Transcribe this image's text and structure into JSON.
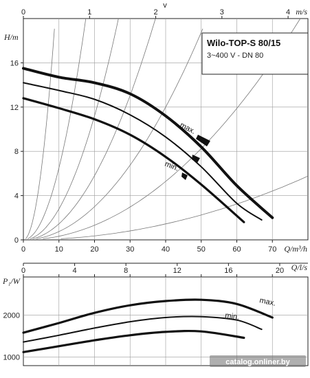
{
  "chart_data": [
    {
      "type": "line",
      "legend_box": {
        "title": "Wilo-TOP-S 80/15",
        "subtitle": "3~400 V - DN 80"
      },
      "top_axis": {
        "label": "v",
        "unit": "m/s",
        "ticks": [
          "0",
          "1",
          "2",
          "3",
          "4"
        ],
        "range": [
          0,
          4.3
        ]
      },
      "x_axis": {
        "unit": "Q/m³/h",
        "ticks": [
          "0",
          "10",
          "20",
          "30",
          "40",
          "50",
          "60",
          "70"
        ],
        "range": [
          0,
          80
        ]
      },
      "y_axis": {
        "unit": "H/m",
        "ticks": [
          "0",
          "4",
          "8",
          "12",
          "16"
        ],
        "range": [
          0,
          20
        ]
      },
      "grid": true,
      "series": [
        {
          "name": "max.",
          "x": [
            0,
            10,
            20,
            30,
            40,
            50,
            60,
            70
          ],
          "y": [
            15.5,
            14.7,
            14.2,
            13.2,
            11.2,
            8.4,
            4.9,
            2.0
          ]
        },
        {
          "name": "",
          "x": [
            0,
            10,
            20,
            30,
            40,
            50,
            60,
            67
          ],
          "y": [
            14.2,
            13.5,
            12.7,
            11.3,
            9.3,
            6.6,
            3.3,
            1.8
          ]
        },
        {
          "name": "min.",
          "x": [
            0,
            10,
            20,
            30,
            40,
            50,
            62
          ],
          "y": [
            12.8,
            11.9,
            10.9,
            9.5,
            7.5,
            5.0,
            1.6
          ]
        }
      ],
      "system_curves_k": [
        0.25,
        0.065,
        0.028,
        0.0145,
        0.0075,
        0.0033,
        0.0009
      ]
    },
    {
      "type": "line",
      "top_axis": {
        "unit": "Q/l/s",
        "ticks": [
          "0",
          "4",
          "8",
          "12",
          "16",
          "20"
        ],
        "range": [
          0,
          22.2
        ]
      },
      "x_axis": {
        "unit": "Q/m³/h",
        "ticks": [
          "0",
          "10",
          "20",
          "30",
          "40",
          "50",
          "60",
          "70"
        ],
        "range": [
          0,
          80
        ]
      },
      "y_axis": {
        "unit": "P₁/W",
        "ticks": [
          "1000",
          "2000"
        ],
        "range": [
          800,
          2900
        ]
      },
      "grid": true,
      "series": [
        {
          "name": "max.",
          "x": [
            0,
            10,
            20,
            30,
            40,
            50,
            60,
            70
          ],
          "y": [
            1580,
            1810,
            2050,
            2230,
            2330,
            2360,
            2260,
            1940
          ]
        },
        {
          "name": "",
          "x": [
            0,
            10,
            20,
            30,
            40,
            50,
            60,
            67
          ],
          "y": [
            1360,
            1520,
            1690,
            1840,
            1940,
            1960,
            1880,
            1660
          ]
        },
        {
          "name": "min.",
          "x": [
            0,
            10,
            20,
            30,
            40,
            50,
            62
          ],
          "y": [
            1120,
            1260,
            1400,
            1520,
            1600,
            1610,
            1460
          ]
        }
      ]
    }
  ],
  "watermark": "catalog.onliner.by"
}
